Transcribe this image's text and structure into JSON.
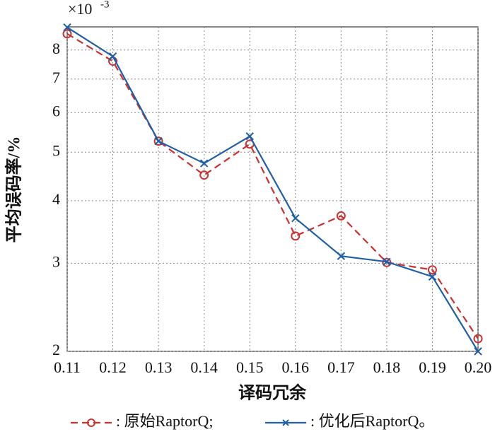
{
  "chart_data": {
    "type": "line",
    "y_label": "平均误码率/%",
    "x_label": "译码冗余",
    "y_multiplier": "×10",
    "y_exponent": "-3",
    "x": [
      0.11,
      0.12,
      0.13,
      0.14,
      0.15,
      0.16,
      0.17,
      0.18,
      0.19,
      0.2
    ],
    "series": [
      {
        "name": ": 原始RaptorQ;",
        "color": "#c8322f",
        "dash": true,
        "marker": "circle",
        "values": [
          8.62,
          7.6,
          5.26,
          4.5,
          5.19,
          3.4,
          3.73,
          3.01,
          2.91,
          2.12
        ]
      },
      {
        "name": ": 优化后RaptorQ。",
        "color": "#1f5fa8",
        "dash": false,
        "marker": "cross",
        "values": [
          8.88,
          7.77,
          5.26,
          4.75,
          5.38,
          3.69,
          3.1,
          3.02,
          2.82,
          2.0
        ]
      }
    ],
    "xlim": [
      0.11,
      0.2
    ],
    "xticks": [
      {
        "value": 0.11,
        "label": "0.11"
      },
      {
        "value": 0.12,
        "label": "0.12"
      },
      {
        "value": 0.13,
        "label": "0.13"
      },
      {
        "value": 0.14,
        "label": "0.14"
      },
      {
        "value": 0.15,
        "label": "0.15"
      },
      {
        "value": 0.16,
        "label": "0.16"
      },
      {
        "value": 0.17,
        "label": "0.17"
      },
      {
        "value": 0.18,
        "label": "0.18"
      },
      {
        "value": 0.19,
        "label": "0.19"
      },
      {
        "value": 0.2,
        "label": "0.20"
      }
    ],
    "ylim": [
      2,
      8.9
    ],
    "yticks": [
      2,
      3,
      4,
      5,
      6,
      7,
      8
    ],
    "log_y": true,
    "grid": true
  }
}
